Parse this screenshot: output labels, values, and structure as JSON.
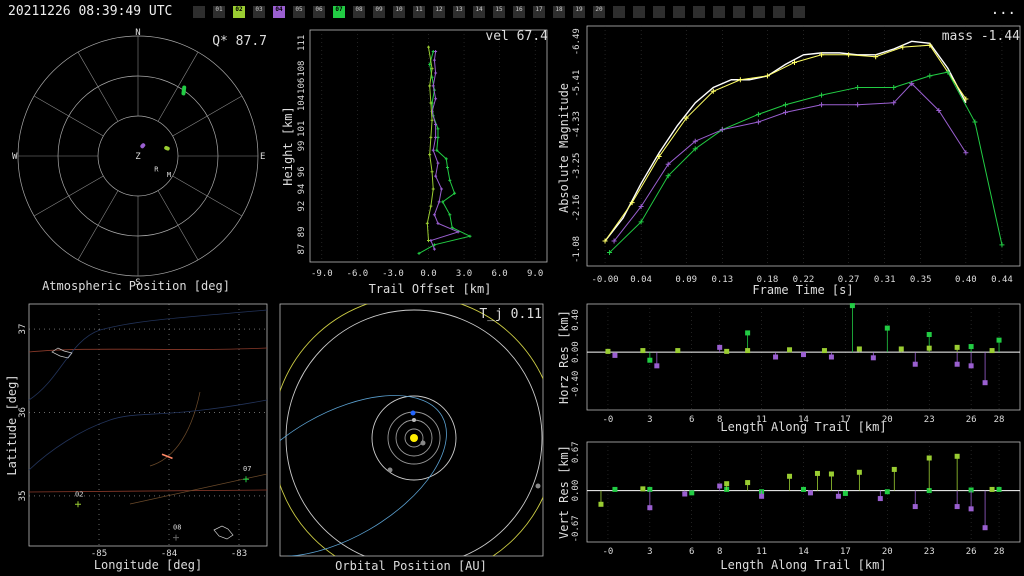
{
  "header": {
    "timestamp": "20211226 08:39:49 UTC",
    "more_label": "...",
    "stations": [
      {
        "label": "",
        "color": "#2e2e2e"
      },
      {
        "label": "01",
        "color": "#2e2e2e"
      },
      {
        "label": "02",
        "color": "#9acd32"
      },
      {
        "label": "03",
        "color": "#2e2e2e"
      },
      {
        "label": "04",
        "color": "#9a5fd0"
      },
      {
        "label": "05",
        "color": "#2e2e2e"
      },
      {
        "label": "06",
        "color": "#2e2e2e"
      },
      {
        "label": "07",
        "color": "#22cc44"
      },
      {
        "label": "08",
        "color": "#2e2e2e"
      },
      {
        "label": "09",
        "color": "#2e2e2e"
      },
      {
        "label": "10",
        "color": "#2e2e2e"
      },
      {
        "label": "11",
        "color": "#2e2e2e"
      },
      {
        "label": "12",
        "color": "#2e2e2e"
      },
      {
        "label": "13",
        "color": "#2e2e2e"
      },
      {
        "label": "14",
        "color": "#2e2e2e"
      },
      {
        "label": "15",
        "color": "#2e2e2e"
      },
      {
        "label": "16",
        "color": "#2e2e2e"
      },
      {
        "label": "17",
        "color": "#2e2e2e"
      },
      {
        "label": "18",
        "color": "#2e2e2e"
      },
      {
        "label": "19",
        "color": "#2e2e2e"
      },
      {
        "label": "20",
        "color": "#2e2e2e"
      },
      {
        "label": "",
        "color": "#2e2e2e"
      },
      {
        "label": "",
        "color": "#2e2e2e"
      },
      {
        "label": "",
        "color": "#2e2e2e"
      },
      {
        "label": "",
        "color": "#2e2e2e"
      },
      {
        "label": "",
        "color": "#2e2e2e"
      },
      {
        "label": "",
        "color": "#2e2e2e"
      },
      {
        "label": "",
        "color": "#2e2e2e"
      },
      {
        "label": "",
        "color": "#2e2e2e"
      },
      {
        "label": "",
        "color": "#2e2e2e"
      },
      {
        "label": "",
        "color": "#2e2e2e"
      }
    ]
  },
  "chart_data": [
    {
      "type": "scatter",
      "panel": "atmospheric",
      "xlabel": "Atmospheric Position [deg]",
      "annotation": "Q* 87.7",
      "directions": [
        "N",
        "E",
        "S",
        "W",
        "Z"
      ],
      "tracks": [
        {
          "station": "02",
          "color": "#9acd32",
          "points": [
            [
              74,
              22
            ],
            [
              76,
              23
            ]
          ]
        },
        {
          "station": "04",
          "color": "#9a5fd0",
          "points": [
            [
              24,
              8
            ],
            [
              26,
              9
            ]
          ]
        },
        {
          "station": "07",
          "color": "#22cc44",
          "points": [
            [
              36,
              58
            ],
            [
              34,
              62
            ]
          ]
        }
      ],
      "markers": [
        {
          "label": "R",
          "az": 130,
          "zd": 18
        },
        {
          "label": "M",
          "az": 124,
          "zd": 28
        }
      ]
    },
    {
      "type": "line",
      "panel": "trail",
      "annotation": "vel 67.4",
      "xlabel": "Trail Offset [km]",
      "ylabel": "Height [km]",
      "xlim": [
        -10,
        10
      ],
      "ylim": [
        85.5,
        112.5
      ],
      "xticks": [
        "-9.0",
        "-6.0",
        "-3.0",
        "0.0",
        "3.0",
        "6.0",
        "9.0"
      ],
      "yticks": [
        "87",
        "89",
        "92",
        "94",
        "96",
        "99",
        "101",
        "104",
        "106",
        "108",
        "111"
      ],
      "series": [
        {
          "color": "#22cc44",
          "points": [
            [
              -0.8,
              86.5
            ],
            [
              0.5,
              87.5
            ],
            [
              3.5,
              88.5
            ],
            [
              2,
              89.5
            ],
            [
              1.8,
              91
            ],
            [
              1.2,
              92.5
            ],
            [
              2.2,
              93.5
            ],
            [
              1.8,
              95
            ],
            [
              1.6,
              96.5
            ],
            [
              1.5,
              97.5
            ],
            [
              0.7,
              98.5
            ],
            [
              0.8,
              100
            ],
            [
              0.8,
              101
            ],
            [
              0.4,
              102.5
            ],
            [
              0.3,
              104
            ],
            [
              0.5,
              105.5
            ],
            [
              0.3,
              107
            ],
            [
              0.1,
              108.5
            ],
            [
              0.4,
              110
            ]
          ]
        },
        {
          "color": "#9a5fd0",
          "points": [
            [
              0.5,
              87
            ],
            [
              0.2,
              88
            ],
            [
              2.5,
              89
            ],
            [
              0.8,
              90
            ],
            [
              0.5,
              91
            ],
            [
              0.9,
              92.5
            ],
            [
              1.1,
              94
            ],
            [
              0.6,
              95.5
            ],
            [
              0.8,
              97
            ],
            [
              0.4,
              98.5
            ],
            [
              0.6,
              100
            ],
            [
              0.6,
              101.5
            ],
            [
              0.3,
              103
            ],
            [
              0.6,
              104.5
            ],
            [
              0.4,
              106
            ],
            [
              0.6,
              107.5
            ],
            [
              0.5,
              109
            ],
            [
              0.6,
              110
            ]
          ]
        },
        {
          "color": "#9acd32",
          "points": [
            [
              0,
              88
            ],
            [
              -0.1,
              90
            ],
            [
              0.2,
              92
            ],
            [
              0.4,
              94
            ],
            [
              0.3,
              96
            ],
            [
              0.1,
              98
            ],
            [
              0.2,
              100
            ],
            [
              0.3,
              102
            ],
            [
              0.2,
              104
            ],
            [
              0.1,
              106
            ],
            [
              0.3,
              108
            ],
            [
              0,
              110.5
            ]
          ]
        }
      ]
    },
    {
      "type": "line",
      "panel": "magnitude",
      "annotation": "mass -1.44",
      "xlabel": "Frame Time [s]",
      "ylabel": "Absolute Magnitude",
      "xlim": [
        -0.02,
        0.46
      ],
      "ylim": [
        -0.65,
        -6.9
      ],
      "xticks": [
        "-0.00",
        "0.04",
        "0.09",
        "0.13",
        "0.18",
        "0.22",
        "0.27",
        "0.31",
        "0.35",
        "0.40",
        "0.44"
      ],
      "yticks": [
        "-1.08",
        "-2.16",
        "-3.25",
        "-4.33",
        "-5.41",
        "-6.49"
      ],
      "series": [
        {
          "color": "#ffffff",
          "points": [
            [
              0,
              -1.3
            ],
            [
              0.02,
              -1.9
            ],
            [
              0.04,
              -2.8
            ],
            [
              0.06,
              -3.6
            ],
            [
              0.08,
              -4.3
            ],
            [
              0.1,
              -4.9
            ],
            [
              0.12,
              -5.3
            ],
            [
              0.14,
              -5.5
            ],
            [
              0.16,
              -5.5
            ],
            [
              0.18,
              -5.6
            ],
            [
              0.2,
              -5.9
            ],
            [
              0.22,
              -6.15
            ],
            [
              0.24,
              -6.2
            ],
            [
              0.26,
              -6.2
            ],
            [
              0.28,
              -6.15
            ],
            [
              0.3,
              -6.15
            ],
            [
              0.32,
              -6.3
            ],
            [
              0.34,
              -6.5
            ],
            [
              0.36,
              -6.45
            ],
            [
              0.38,
              -5.8
            ],
            [
              0.4,
              -4.9
            ]
          ]
        },
        {
          "color": "#ffff66",
          "points": [
            [
              0,
              -1.3
            ],
            [
              0.03,
              -2.3
            ],
            [
              0.06,
              -3.5
            ],
            [
              0.09,
              -4.5
            ],
            [
              0.12,
              -5.2
            ],
            [
              0.15,
              -5.5
            ],
            [
              0.18,
              -5.6
            ],
            [
              0.21,
              -5.95
            ],
            [
              0.24,
              -6.15
            ],
            [
              0.27,
              -6.15
            ],
            [
              0.3,
              -6.1
            ],
            [
              0.33,
              -6.35
            ],
            [
              0.36,
              -6.4
            ],
            [
              0.4,
              -5.0
            ]
          ]
        },
        {
          "color": "#22cc44",
          "points": [
            [
              0.005,
              -1.0
            ],
            [
              0.04,
              -1.8
            ],
            [
              0.07,
              -3.0
            ],
            [
              0.1,
              -3.7
            ],
            [
              0.13,
              -4.2
            ],
            [
              0.17,
              -4.6
            ],
            [
              0.2,
              -4.85
            ],
            [
              0.24,
              -5.1
            ],
            [
              0.28,
              -5.3
            ],
            [
              0.32,
              -5.3
            ],
            [
              0.36,
              -5.6
            ],
            [
              0.38,
              -5.7
            ],
            [
              0.41,
              -4.4
            ],
            [
              0.44,
              -1.2
            ]
          ]
        },
        {
          "color": "#9a5fd0",
          "points": [
            [
              0.01,
              -1.3
            ],
            [
              0.04,
              -2.2
            ],
            [
              0.07,
              -3.3
            ],
            [
              0.1,
              -3.9
            ],
            [
              0.13,
              -4.2
            ],
            [
              0.17,
              -4.4
            ],
            [
              0.2,
              -4.65
            ],
            [
              0.24,
              -4.85
            ],
            [
              0.28,
              -4.85
            ],
            [
              0.32,
              -4.9
            ],
            [
              0.34,
              -5.4
            ],
            [
              0.37,
              -4.7
            ],
            [
              0.4,
              -3.6
            ]
          ]
        }
      ]
    },
    {
      "type": "map",
      "panel": "geo",
      "xlabel": "Longitude [deg]",
      "ylabel": "Latitude [deg]",
      "xlim": [
        -86.0,
        -82.6
      ],
      "ylim": [
        34.4,
        37.3
      ],
      "xticks": [
        "-85",
        "-84",
        "-83"
      ],
      "yticks": [
        "35",
        "36",
        "37"
      ],
      "stations": [
        {
          "label": "02",
          "lon": -85.3,
          "lat": 34.9,
          "color": "#9acd32"
        },
        {
          "label": "07",
          "lon": -82.9,
          "lat": 35.2,
          "color": "#22cc44"
        },
        {
          "label": "08",
          "lon": -83.9,
          "lat": 34.5,
          "color": "#666666"
        }
      ],
      "trail": [
        [
          -84.1,
          35.5
        ],
        [
          -83.95,
          35.45
        ]
      ]
    },
    {
      "type": "orbit",
      "panel": "orbital",
      "xlabel": "Orbital Position [AU]",
      "annotation": "T_j 0.11"
    },
    {
      "type": "scatter",
      "panel": "horizontal",
      "xlabel": "Length Along Trail [km]",
      "ylabel": "Horz Res [km]",
      "xlim": [
        -1.5,
        29.5
      ],
      "ylim": [
        -0.72,
        0.6
      ],
      "xticks": [
        "-0",
        "3",
        "6",
        "8",
        "11",
        "14",
        "17",
        "20",
        "23",
        "26",
        "28"
      ],
      "yticks": [
        "-0.40",
        "0.00",
        "0.40"
      ],
      "series": [
        {
          "color": "#22cc44",
          "points": [
            [
              3,
              -0.1
            ],
            [
              10,
              0.24
            ],
            [
              17.5,
              0.58
            ],
            [
              20,
              0.3
            ],
            [
              23,
              0.22
            ],
            [
              26,
              0.07
            ],
            [
              28,
              0.15
            ]
          ]
        },
        {
          "color": "#9a5fd0",
          "points": [
            [
              0.5,
              -0.04
            ],
            [
              3.5,
              -0.17
            ],
            [
              8,
              0.06
            ],
            [
              12,
              -0.06
            ],
            [
              14,
              -0.03
            ],
            [
              16,
              -0.06
            ],
            [
              19,
              -0.07
            ],
            [
              22,
              -0.15
            ],
            [
              25,
              -0.15
            ],
            [
              26,
              -0.17
            ],
            [
              27,
              -0.38
            ]
          ]
        },
        {
          "color": "#9acd32",
          "points": [
            [
              0,
              0.01
            ],
            [
              2.5,
              0.02
            ],
            [
              5,
              0.02
            ],
            [
              8.5,
              0.01
            ],
            [
              10,
              0.02
            ],
            [
              13,
              0.03
            ],
            [
              15.5,
              0.02
            ],
            [
              18,
              0.04
            ],
            [
              21,
              0.04
            ],
            [
              23,
              0.05
            ],
            [
              25,
              0.06
            ],
            [
              27.5,
              0.02
            ]
          ]
        }
      ]
    },
    {
      "type": "scatter",
      "panel": "vertical",
      "xlabel": "Length Along Trail [km]",
      "ylabel": "Vert Res [km]",
      "xlim": [
        -1.5,
        29.5
      ],
      "ylim": [
        -0.9,
        0.85
      ],
      "xticks": [
        "-0",
        "3",
        "6",
        "8",
        "11",
        "14",
        "17",
        "20",
        "23",
        "26",
        "28"
      ],
      "yticks": [
        "-0.67",
        "0.00",
        "0.67"
      ],
      "series": [
        {
          "color": "#22cc44",
          "points": [
            [
              0.5,
              0.02
            ],
            [
              3,
              0.02
            ],
            [
              6,
              -0.04
            ],
            [
              8.5,
              0.02
            ],
            [
              11,
              -0.02
            ],
            [
              14,
              0.02
            ],
            [
              17,
              -0.05
            ],
            [
              20,
              -0.02
            ],
            [
              23,
              0.0
            ],
            [
              26,
              0.01
            ],
            [
              28,
              0.02
            ]
          ]
        },
        {
          "color": "#9a5fd0",
          "points": [
            [
              3,
              -0.3
            ],
            [
              5.5,
              -0.06
            ],
            [
              8,
              0.08
            ],
            [
              11,
              -0.1
            ],
            [
              14.5,
              -0.04
            ],
            [
              16.5,
              -0.1
            ],
            [
              19.5,
              -0.14
            ],
            [
              22,
              -0.28
            ],
            [
              25,
              -0.28
            ],
            [
              26,
              -0.32
            ],
            [
              27,
              -0.65
            ]
          ]
        },
        {
          "color": "#9acd32",
          "points": [
            [
              -0.5,
              -0.24
            ],
            [
              2.5,
              0.03
            ],
            [
              8.5,
              0.12
            ],
            [
              10,
              0.14
            ],
            [
              13,
              0.25
            ],
            [
              15,
              0.3
            ],
            [
              16,
              0.29
            ],
            [
              18,
              0.32
            ],
            [
              20.5,
              0.37
            ],
            [
              23,
              0.57
            ],
            [
              25,
              0.6
            ],
            [
              27.5,
              0.02
            ]
          ]
        }
      ]
    }
  ]
}
